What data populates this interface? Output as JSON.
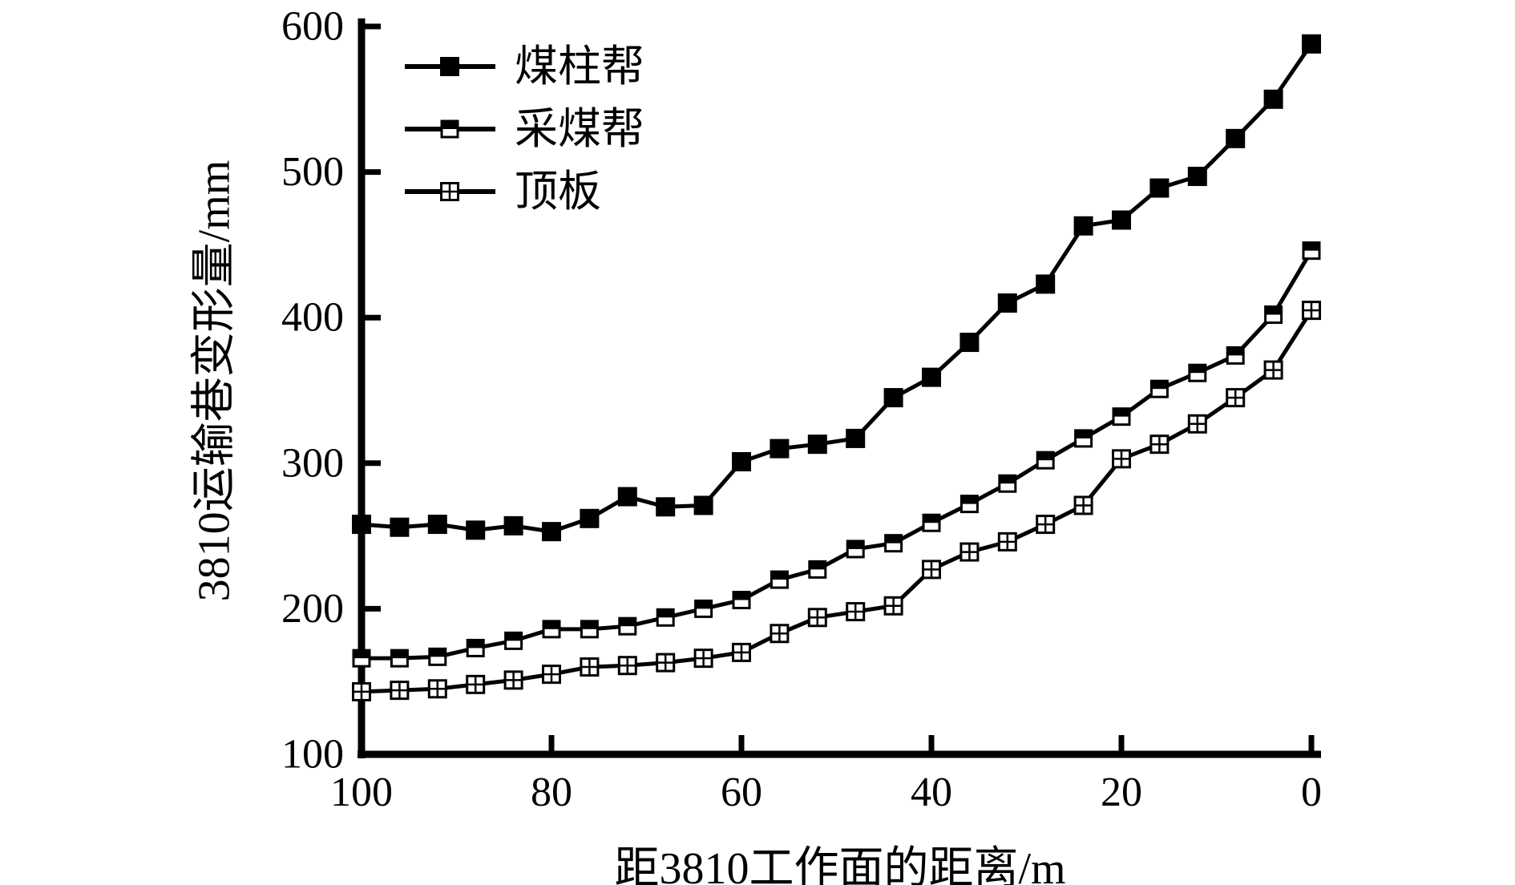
{
  "figure": {
    "background": "#ffffff",
    "ink": "#000000"
  },
  "chart_data": {
    "type": "line",
    "title": "",
    "xlabel": "距3810工作面的距离/m",
    "ylabel": "3810运输巷变形量/mm",
    "x_axis_reversed": true,
    "xlim": [
      100,
      0
    ],
    "ylim": [
      100,
      600
    ],
    "x_ticks": [
      100,
      80,
      60,
      40,
      20,
      0
    ],
    "y_ticks": [
      600,
      500,
      400,
      300,
      200,
      100
    ],
    "grid": false,
    "legend_position": "top-left-inside",
    "x": [
      100,
      96,
      92,
      88,
      84,
      80,
      76,
      72,
      68,
      64,
      60,
      56,
      52,
      48,
      44,
      40,
      36,
      32,
      28,
      24,
      20,
      16,
      12,
      8,
      4,
      0
    ],
    "series": [
      {
        "name": "煤柱帮",
        "marker": "filled-square",
        "values": [
          258,
          256,
          258,
          254,
          257,
          253,
          262,
          277,
          270,
          271,
          301,
          310,
          313,
          317,
          345,
          359,
          383,
          410,
          423,
          463,
          467,
          489,
          497,
          523,
          550,
          588
        ]
      },
      {
        "name": "采煤帮",
        "marker": "half-filled-square",
        "values": [
          166,
          166,
          167,
          173,
          178,
          186,
          186,
          188,
          194,
          200,
          206,
          220,
          227,
          241,
          245,
          259,
          272,
          286,
          302,
          317,
          332,
          351,
          362,
          374,
          402,
          446
        ]
      },
      {
        "name": "顶板",
        "marker": "crossed-square",
        "values": [
          143,
          144,
          145,
          148,
          151,
          155,
          160,
          161,
          163,
          166,
          170,
          183,
          194,
          198,
          202,
          227,
          239,
          246,
          258,
          271,
          303,
          313,
          327,
          345,
          364,
          405
        ]
      }
    ]
  }
}
